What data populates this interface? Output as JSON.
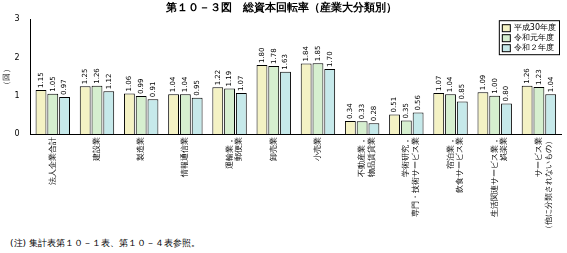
{
  "chart_data": {
    "type": "bar",
    "title": "第１０－３図　総資本回転率（産業大分類別）",
    "y_label": "（回）",
    "categories": [
      "法人企業合計",
      "建設業",
      "製造業",
      "情報通信業",
      "運輸業，郵便業",
      "卸売業",
      "小売業",
      "不動産業，物品賃貸業",
      "学術研究，専門・技術サービス業",
      "宿泊業，飲食サービス業",
      "生活関連サービス業，娯楽業",
      "サービス業（他に分類されないもの）"
    ],
    "series": [
      {
        "name": "平成30年度",
        "color": "#f4f2c4",
        "values": [
          1.15,
          1.25,
          1.06,
          1.04,
          1.22,
          1.8,
          1.84,
          0.34,
          0.51,
          1.07,
          1.09,
          1.26
        ],
        "value_labels": [
          "1.15",
          "1.25",
          "1.06",
          "1.04",
          "1.22",
          "1.80",
          "1.84",
          "0.34",
          "0.51",
          "1.07",
          "1.09",
          "1.26"
        ]
      },
      {
        "name": "令和元年度",
        "color": "#d6efcf",
        "values": [
          1.05,
          1.26,
          0.99,
          1.04,
          1.19,
          1.78,
          1.85,
          0.33,
          0.35,
          1.04,
          1.0,
          1.23
        ],
        "value_labels": [
          "1.05",
          "1.26",
          "0.99",
          "1.04",
          "1.19",
          "1.78",
          "1.85",
          "0.33",
          "0.35",
          "1.04",
          "1.00",
          "1.23"
        ]
      },
      {
        "name": "令和２年度",
        "color": "#c6e9ea",
        "values": [
          0.97,
          1.12,
          0.91,
          0.95,
          1.07,
          1.63,
          1.7,
          0.28,
          0.56,
          0.85,
          0.8,
          1.04
        ],
        "value_labels": [
          "0.97",
          "1.12",
          "0.91",
          "0.95",
          "1.07",
          "1.63",
          "1.70",
          "0.28",
          "0.56",
          "0.85",
          "0.80",
          "1.04"
        ]
      }
    ],
    "ylim": [
      0,
      3
    ],
    "yticks": [
      0,
      1,
      2,
      3
    ],
    "grid": false,
    "legend": "upper right",
    "data_labels": true,
    "annotation": "(注) 集計表第１０－１表、第１０－４表参照。"
  }
}
